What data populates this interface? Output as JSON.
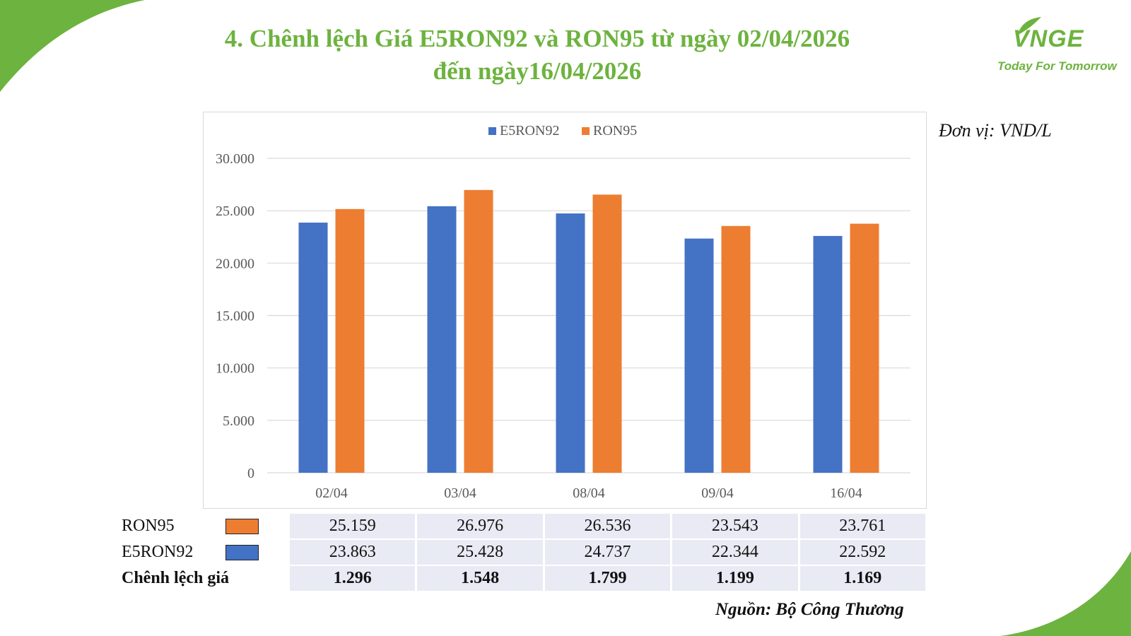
{
  "title": {
    "line1": "4. Chênh lệch Giá E5RON92 và RON95 từ ngày 02/04/2026",
    "line2": "đến ngày16/04/2026"
  },
  "logo": {
    "mark": "VNGE",
    "tagline": "Today For Tomorrow"
  },
  "unit": "Đơn vị: VND/L",
  "source": "Nguồn: Bộ Công Thương",
  "colors": {
    "e5ron92": "#4472c4",
    "ron95": "#ed7d31",
    "brand_green": "#6db33f",
    "table_bg": "#e8ebf4"
  },
  "chart_data": {
    "type": "bar",
    "categories": [
      "02/04",
      "03/04",
      "08/04",
      "09/04",
      "16/04"
    ],
    "series": [
      {
        "name": "E5RON92",
        "values": [
          23863,
          25428,
          24737,
          22344,
          22592
        ]
      },
      {
        "name": "RON95",
        "values": [
          25159,
          26976,
          26536,
          23543,
          23761
        ]
      }
    ],
    "ylim": [
      0,
      30000
    ],
    "yticks": [
      "0",
      "5.000",
      "10.000",
      "15.000",
      "20.000",
      "25.000",
      "30.000"
    ],
    "ytick_values": [
      0,
      5000,
      10000,
      15000,
      20000,
      25000,
      30000
    ],
    "legend": "top-center",
    "grid": true
  },
  "table": {
    "rows": [
      {
        "label": "RON95",
        "values": [
          "25.159",
          "26.976",
          "26.536",
          "23.543",
          "23.761"
        ]
      },
      {
        "label": "E5RON92",
        "values": [
          "23.863",
          "25.428",
          "24.737",
          "22.344",
          "22.592"
        ]
      },
      {
        "label": "Chênh lệch giá",
        "values": [
          "1.296",
          "1.548",
          "1.799",
          "1.199",
          "1.169"
        ]
      }
    ]
  }
}
